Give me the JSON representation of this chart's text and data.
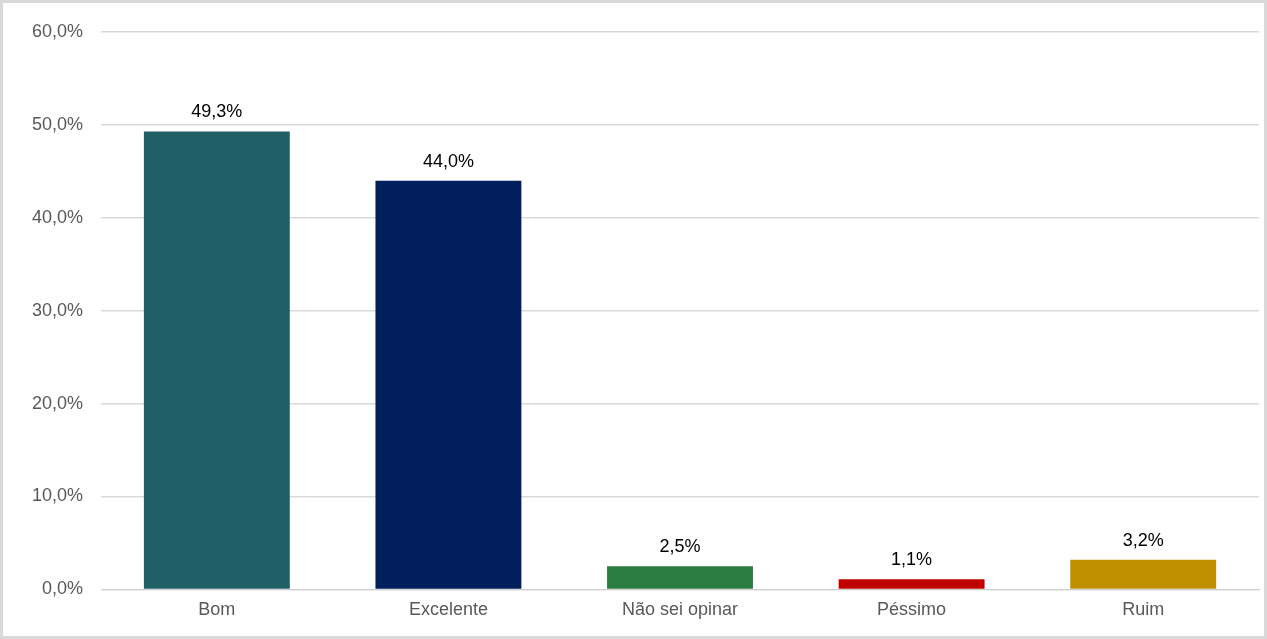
{
  "chart_data": {
    "type": "bar",
    "categories": [
      "Bom",
      "Excelente",
      "Não sei opinar",
      "Péssimo",
      "Ruim"
    ],
    "values": [
      49.3,
      44.0,
      2.5,
      1.1,
      3.2
    ],
    "colors": [
      "#215f66",
      "#001f5b",
      "#2a7d3f",
      "#c00000",
      "#bf8f00"
    ],
    "value_labels": [
      "49,3%",
      "44,0%",
      "2,5%",
      "1,1%",
      "3,2%"
    ],
    "ylim": [
      0,
      60
    ],
    "yticks": [
      {
        "value": 0,
        "label": "0,0%"
      },
      {
        "value": 10,
        "label": "10,0%"
      },
      {
        "value": 20,
        "label": "20,0%"
      },
      {
        "value": 30,
        "label": "30,0%"
      },
      {
        "value": 40,
        "label": "40,0%"
      },
      {
        "value": 50,
        "label": "50,0%"
      },
      {
        "value": 60,
        "label": "60,0%"
      }
    ],
    "grid": "y"
  }
}
